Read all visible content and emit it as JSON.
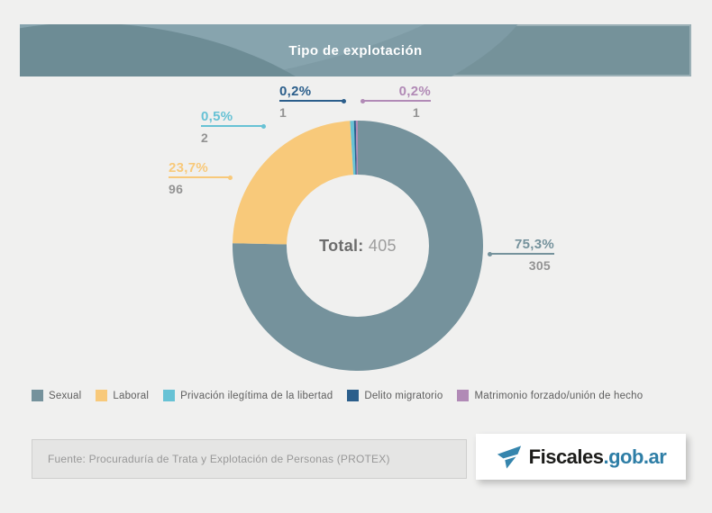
{
  "page": {
    "background": "#f0f0ef"
  },
  "header": {
    "title": "Tipo de explotación",
    "bg": "#75929a"
  },
  "chart_data": {
    "type": "pie",
    "variant": "donut",
    "title": "Tipo de explotación",
    "center_label": "Total:",
    "total": 405,
    "start_angle_deg": 0,
    "direction": "clockwise",
    "inner_radius": 79,
    "outer_radius": 139,
    "segments": [
      {
        "id": "sexual",
        "label": "Sexual",
        "value": 305,
        "pct": "75,3%",
        "color": "#75929c"
      },
      {
        "id": "laboral",
        "label": "Laboral",
        "value": 96,
        "pct": "23,7%",
        "color": "#f8c97a"
      },
      {
        "id": "privacion",
        "label": "Privación ilegítima de la libertad",
        "value": 2,
        "pct": "0,5%",
        "color": "#67c2d5"
      },
      {
        "id": "delito",
        "label": "Delito migratorio",
        "value": 1,
        "pct": "0,2%",
        "color": "#2b5e8b"
      },
      {
        "id": "matrimonio",
        "label": "Matrimonio forzado/unión de hecho",
        "value": 1,
        "pct": "0,2%",
        "color": "#b18ab6"
      }
    ],
    "legend_position": "bottom"
  },
  "footer": {
    "source": "Fuente: Procuraduría de Trata y Explotación de Personas (PROTEX)"
  },
  "logo": {
    "name": "Fiscales",
    "suffix": ".gob.ar",
    "accent": "#2e7ea6"
  }
}
